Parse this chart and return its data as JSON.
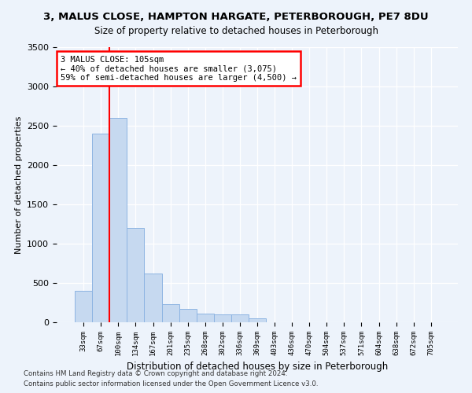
{
  "title": "3, MALUS CLOSE, HAMPTON HARGATE, PETERBOROUGH, PE7 8DU",
  "subtitle": "Size of property relative to detached houses in Peterborough",
  "xlabel": "Distribution of detached houses by size in Peterborough",
  "ylabel": "Number of detached properties",
  "bar_labels": [
    "33sqm",
    "67sqm",
    "100sqm",
    "134sqm",
    "167sqm",
    "201sqm",
    "235sqm",
    "268sqm",
    "302sqm",
    "336sqm",
    "369sqm",
    "403sqm",
    "436sqm",
    "470sqm",
    "504sqm",
    "537sqm",
    "571sqm",
    "604sqm",
    "638sqm",
    "672sqm",
    "705sqm"
  ],
  "bar_values": [
    400,
    2400,
    2600,
    1200,
    620,
    230,
    170,
    110,
    100,
    100,
    50,
    0,
    0,
    0,
    0,
    0,
    0,
    0,
    0,
    0,
    0
  ],
  "bar_color": "#c6d9f0",
  "bar_edgecolor": "#8db4e2",
  "vline_x_index": 2,
  "vline_color": "red",
  "ylim": [
    0,
    3500
  ],
  "yticks": [
    0,
    500,
    1000,
    1500,
    2000,
    2500,
    3000,
    3500
  ],
  "annotation_text": "3 MALUS CLOSE: 105sqm\n← 40% of detached houses are smaller (3,075)\n59% of semi-detached houses are larger (4,500) →",
  "annotation_box_color": "white",
  "annotation_box_edgecolor": "red",
  "footnote1": "Contains HM Land Registry data © Crown copyright and database right 2024.",
  "footnote2": "Contains public sector information licensed under the Open Government Licence v3.0.",
  "bg_color": "#edf3fb",
  "plot_bg_color": "#edf3fb"
}
